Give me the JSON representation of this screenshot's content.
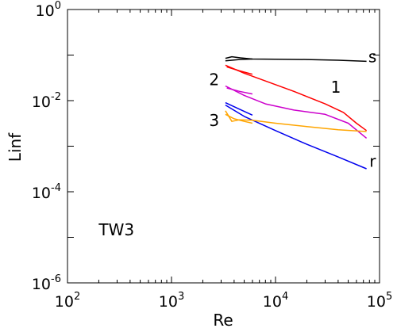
{
  "chart_data": {
    "type": "line",
    "xlabel": "Re",
    "ylabel": "Linf",
    "xscale": "log",
    "yscale": "log",
    "xlim": [
      100,
      100000
    ],
    "ylim": [
      1e-06,
      1
    ],
    "grid": false,
    "legend": "none",
    "x_ticks": [
      {
        "base": "10",
        "exp": "2"
      },
      {
        "base": "10",
        "exp": "3"
      },
      {
        "base": "10",
        "exp": "4"
      },
      {
        "base": "10",
        "exp": "5"
      }
    ],
    "y_ticks": [
      {
        "base": "10",
        "exp": "0"
      },
      {
        "base": "10",
        "exp": "-2"
      },
      {
        "base": "10",
        "exp": "-4"
      },
      {
        "base": "10",
        "exp": "-6"
      }
    ],
    "annotations": [
      {
        "text": "TW3",
        "x": 200,
        "y": 1.1e-05
      },
      {
        "text": "s",
        "x": 78000,
        "y": 0.07
      },
      {
        "text": "1",
        "x": 34000,
        "y": 0.015
      },
      {
        "text": "2",
        "x": 2300,
        "y": 0.022
      },
      {
        "text": "3",
        "x": 2300,
        "y": 0.0028
      },
      {
        "text": "r",
        "x": 80000,
        "y": 0.00035
      }
    ],
    "series": [
      {
        "color": "#000000",
        "x": [
          3300,
          3800,
          4600,
          6000,
          10000,
          20000,
          40000,
          75000
        ],
        "y": [
          0.085,
          0.092,
          0.087,
          0.082,
          0.081,
          0.08,
          0.077,
          0.073
        ]
      },
      {
        "color": "#000000",
        "x": [
          3300,
          4500,
          6000
        ],
        "y": [
          0.075,
          0.08,
          0.082
        ]
      },
      {
        "color": "#ff0000",
        "x": [
          3300,
          5000,
          8000,
          15000,
          30000,
          45000,
          60000,
          75000
        ],
        "y": [
          0.06,
          0.04,
          0.027,
          0.016,
          0.0085,
          0.0055,
          0.0032,
          0.0022
        ]
      },
      {
        "color": "#ff0000",
        "x": [
          3400,
          4500,
          6000
        ],
        "y": [
          0.055,
          0.045,
          0.038
        ]
      },
      {
        "color": "#cc00cc",
        "x": [
          3300,
          5000,
          8000,
          15000,
          30000,
          50000,
          75000
        ],
        "y": [
          0.021,
          0.013,
          0.0085,
          0.0062,
          0.005,
          0.0032,
          0.0015
        ]
      },
      {
        "color": "#cc00cc",
        "x": [
          3400,
          4500,
          6000
        ],
        "y": [
          0.019,
          0.016,
          0.014
        ]
      },
      {
        "color": "#0000ee",
        "x": [
          3300,
          5000,
          10000,
          20000,
          40000,
          75000
        ],
        "y": [
          0.008,
          0.0045,
          0.0022,
          0.0011,
          0.00058,
          0.00032
        ]
      },
      {
        "color": "#0000ee",
        "x": [
          3300,
          4500,
          6000
        ],
        "y": [
          0.009,
          0.0065,
          0.0048
        ]
      },
      {
        "color": "#ffa500",
        "x": [
          3300,
          3800,
          4500,
          6000,
          10000,
          20000,
          40000,
          75000
        ],
        "y": [
          0.006,
          0.0035,
          0.0038,
          0.0037,
          0.0032,
          0.0027,
          0.0023,
          0.0021
        ]
      },
      {
        "color": "#ffa500",
        "x": [
          3300,
          4000,
          5000,
          6000
        ],
        "y": [
          0.005,
          0.004,
          0.0035,
          0.0032
        ]
      }
    ]
  }
}
